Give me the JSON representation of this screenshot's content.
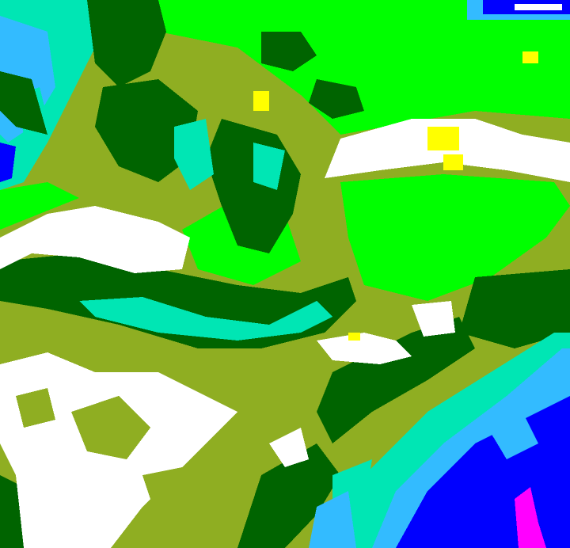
{
  "map": {
    "type": "classified raster",
    "palette": {
      "olive": "#8fae22",
      "dark_green": "#006400",
      "bright_green": "#00ff00",
      "aquamarine": "#00e6b4",
      "light_blue": "#00aaff",
      "blue": "#0000ff",
      "white": "#ffffff",
      "yellow": "#ffff00",
      "magenta": "#ff00ff"
    }
  }
}
